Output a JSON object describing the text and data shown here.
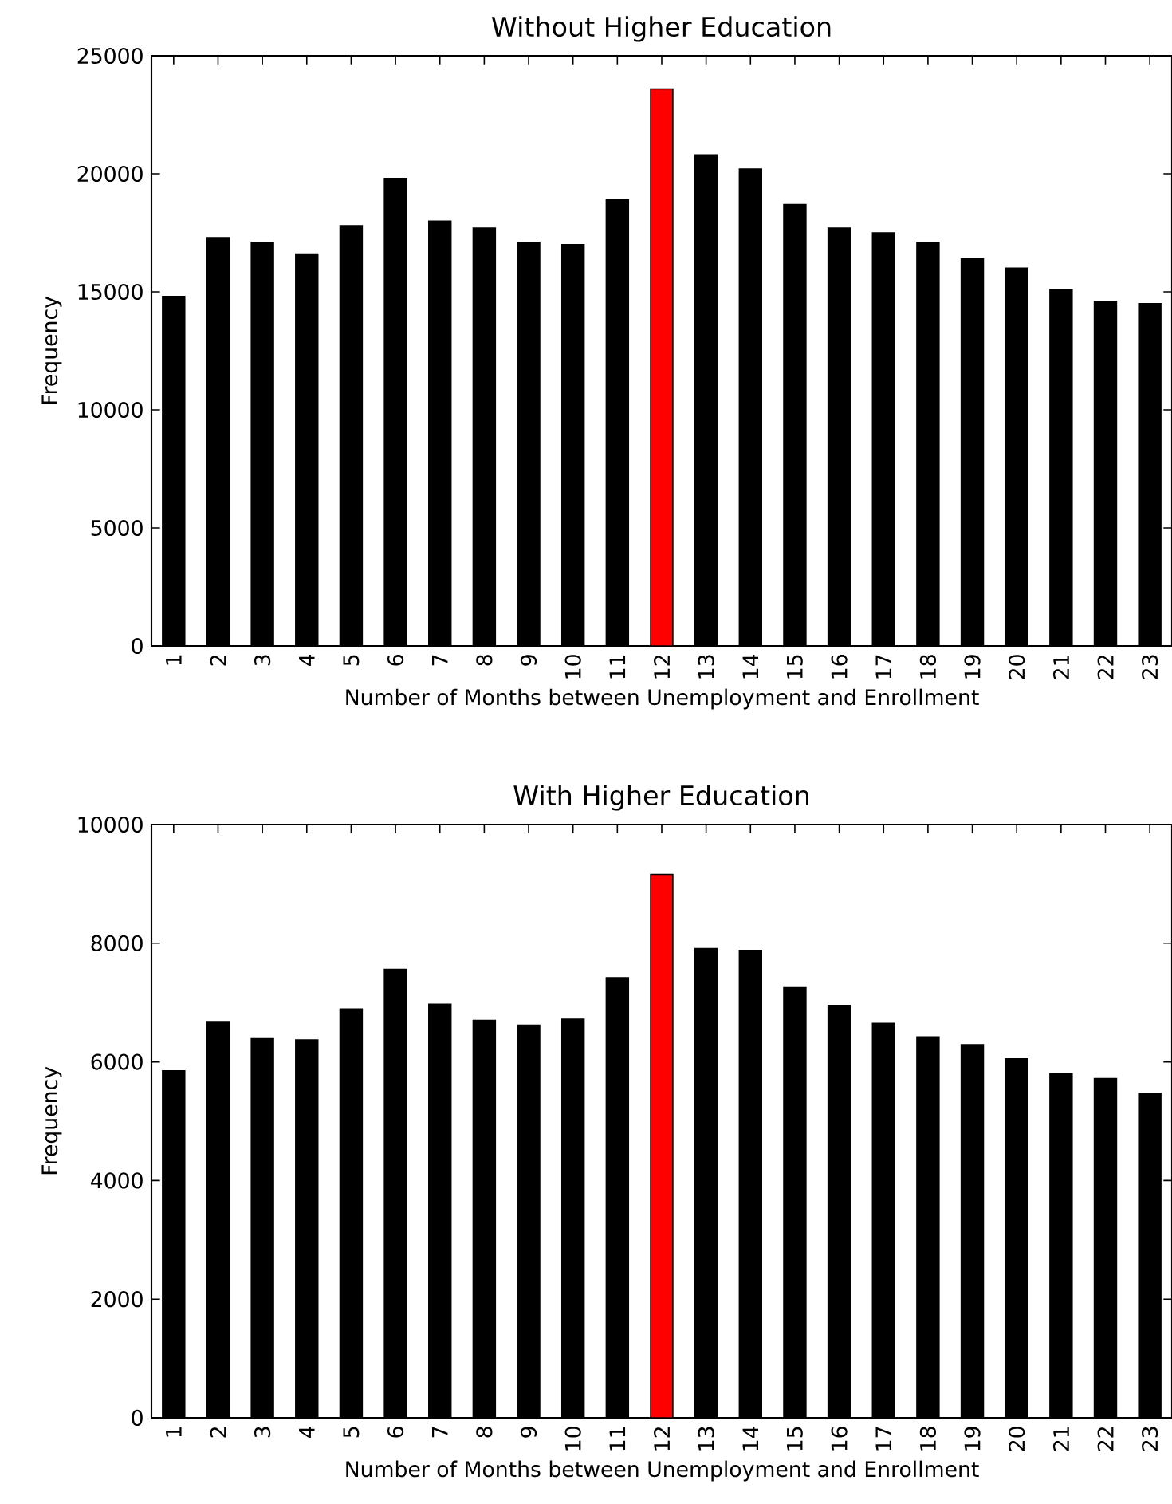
{
  "chart_data": [
    {
      "type": "bar",
      "title": "Without Higher Education",
      "xlabel": "Number of Months between Unemployment and Enrollment",
      "ylabel": "Frequency",
      "categories": [
        "1",
        "2",
        "3",
        "4",
        "5",
        "6",
        "7",
        "8",
        "9",
        "10",
        "11",
        "12",
        "13",
        "14",
        "15",
        "16",
        "17",
        "18",
        "19",
        "20",
        "21",
        "22",
        "23"
      ],
      "values": [
        14800,
        17300,
        17100,
        16600,
        17800,
        19800,
        18000,
        17700,
        17100,
        17000,
        18900,
        23600,
        20800,
        20200,
        18700,
        17700,
        17500,
        17100,
        16400,
        16000,
        15100,
        14600,
        14500
      ],
      "colors": [
        "#000000",
        "#000000",
        "#000000",
        "#000000",
        "#000000",
        "#000000",
        "#000000",
        "#000000",
        "#000000",
        "#000000",
        "#000000",
        "#ff0000",
        "#000000",
        "#000000",
        "#000000",
        "#000000",
        "#000000",
        "#000000",
        "#000000",
        "#000000",
        "#000000",
        "#000000",
        "#000000"
      ],
      "ylim": [
        0,
        25000
      ],
      "yticks": [
        0,
        5000,
        10000,
        15000,
        20000,
        25000
      ]
    },
    {
      "type": "bar",
      "title": "With Higher Education",
      "xlabel": "Number of Months between Unemployment and Enrollment",
      "ylabel": "Frequency",
      "categories": [
        "1",
        "2",
        "3",
        "4",
        "5",
        "6",
        "7",
        "8",
        "9",
        "10",
        "11",
        "12",
        "13",
        "14",
        "15",
        "16",
        "17",
        "18",
        "19",
        "20",
        "21",
        "22",
        "23"
      ],
      "values": [
        5850,
        6680,
        6390,
        6370,
        6890,
        7560,
        6970,
        6700,
        6620,
        6720,
        7420,
        9160,
        7910,
        7880,
        7250,
        6950,
        6650,
        6420,
        6290,
        6050,
        5800,
        5720,
        5470
      ],
      "colors": [
        "#000000",
        "#000000",
        "#000000",
        "#000000",
        "#000000",
        "#000000",
        "#000000",
        "#000000",
        "#000000",
        "#000000",
        "#000000",
        "#ff0000",
        "#000000",
        "#000000",
        "#000000",
        "#000000",
        "#000000",
        "#000000",
        "#000000",
        "#000000",
        "#000000",
        "#000000",
        "#000000"
      ],
      "ylim": [
        0,
        10000
      ],
      "yticks": [
        0,
        2000,
        4000,
        6000,
        8000,
        10000
      ]
    }
  ]
}
